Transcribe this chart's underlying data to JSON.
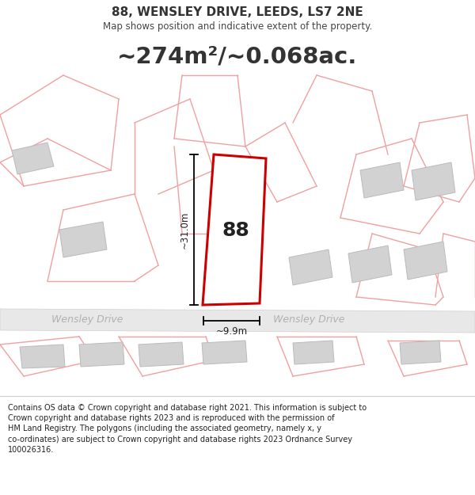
{
  "title": "88, WENSLEY DRIVE, LEEDS, LS7 2NE",
  "subtitle": "Map shows position and indicative extent of the property.",
  "area_text": "~274m²/~0.068ac.",
  "property_number": "88",
  "dim_vertical": "~31.0m",
  "dim_horizontal": "~9.9m",
  "road_label_left": "Wensley Drive",
  "road_label_right": "Wensley Drive",
  "footer_text": "Contains OS data © Crown copyright and database right 2021. This information is subject to\nCrown copyright and database rights 2023 and is reproduced with the permission of\nHM Land Registry. The polygons (including the associated geometry, namely x, y\nco-ordinates) are subject to Crown copyright and database rights 2023 Ordnance Survey\n100026316.",
  "bg_color": "#ffffff",
  "plot_line_color": "#f0a0a0",
  "highlight_color": "#cc0000",
  "building_fill": "#d4d4d4",
  "road_fill": "#e8e8e8",
  "road_edge": "#d0d0d0"
}
